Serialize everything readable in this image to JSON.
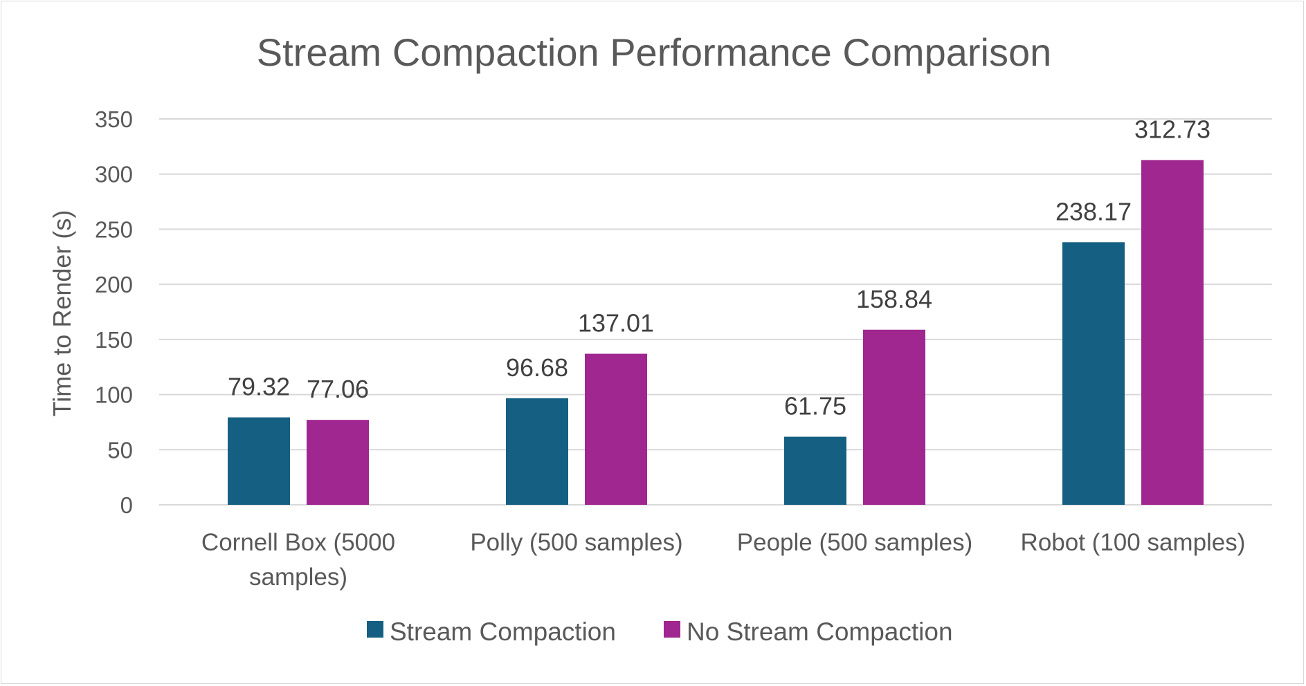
{
  "chart_data": {
    "type": "bar",
    "title": "Stream Compaction Performance Comparison",
    "xlabel": "",
    "ylabel": "Time to Render (s)",
    "ylim": [
      0,
      350
    ],
    "yticks": [
      0,
      50,
      100,
      150,
      200,
      250,
      300,
      350
    ],
    "categories": [
      [
        "Cornell Box (5000",
        "samples)"
      ],
      [
        "Polly (500 samples)"
      ],
      [
        "People (500 samples)"
      ],
      [
        "Robot (100 samples)"
      ]
    ],
    "series": [
      {
        "name": "Stream Compaction",
        "color": "#156082",
        "values": [
          79.32,
          96.68,
          61.75,
          238.17
        ]
      },
      {
        "name": "No Stream Compaction",
        "color": "#A0278F",
        "values": [
          77.06,
          137.01,
          158.84,
          312.73
        ]
      }
    ],
    "grid": true,
    "legend": "bottom"
  }
}
